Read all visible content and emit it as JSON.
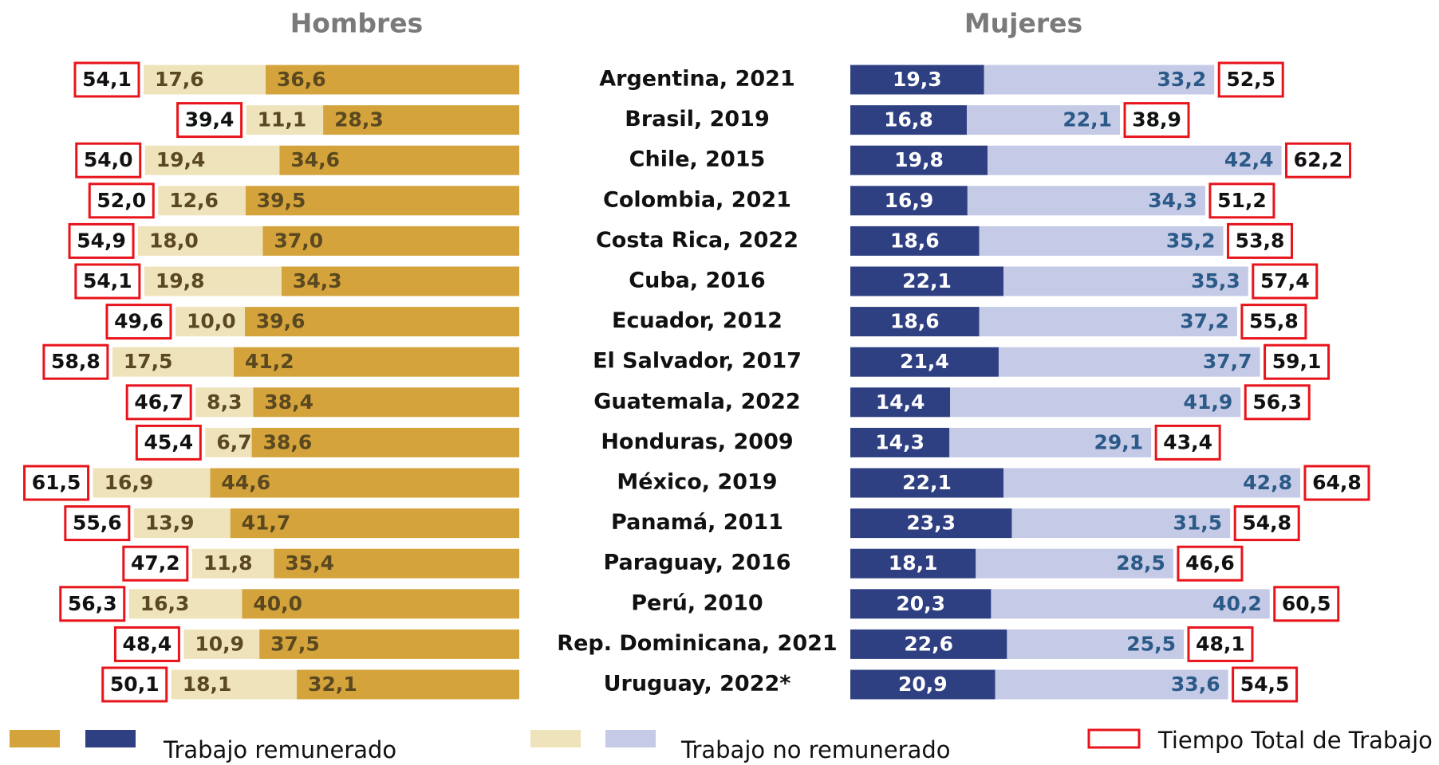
{
  "chart_data": {
    "type": "butterfly_bar",
    "categories": [
      "Argentina, 2021",
      "Brasil, 2019",
      "Chile, 2015",
      "Colombia, 2021",
      "Costa Rica, 2022",
      "Cuba, 2016",
      "Ecuador, 2012",
      "El Salvador, 2017",
      "Guatemala, 2022",
      "Honduras, 2009",
      "México, 2019",
      "Panamá, 2011",
      "Paraguay, 2016",
      "Perú, 2010",
      "Rep. Dominicana, 2021",
      "Uruguay, 2022*"
    ],
    "legend": [
      {
        "name": "Trabajo remunerado"
      },
      {
        "name": "Trabajo no remunerado"
      },
      {
        "name": "Tiempo Total de Trabajo",
        "color": "#e8141b"
      }
    ],
    "panels": [
      {
        "title": "Hombres",
        "series": [
          {
            "color": "#d4a33b",
            "text_color": "#5a4820",
            "values": [
              36.6,
              28.3,
              34.6,
              39.5,
              37.0,
              34.3,
              39.6,
              41.2,
              38.4,
              38.6,
              44.6,
              41.7,
              35.4,
              40.0,
              37.5,
              32.1
            ],
            "value_labels": [
              "36,6",
              "28,3",
              "34,6",
              "39,5",
              "37,0",
              "34,3",
              "39,6",
              "41,2",
              "38,4",
              "38,6",
              "44,6",
              "41,7",
              "35,4",
              "40,0",
              "37,5",
              "32,1"
            ]
          },
          {
            "color": "#efe3bb",
            "text_color": "#5a4820",
            "values": [
              17.6,
              11.1,
              19.4,
              12.6,
              18.0,
              19.8,
              10.0,
              17.5,
              8.3,
              6.7,
              16.9,
              13.9,
              11.8,
              16.3,
              10.9,
              18.1
            ],
            "value_labels": [
              "17,6",
              "11,1",
              "19,4",
              "12,6",
              "18,0",
              "19,8",
              "10,0",
              "17,5",
              "8,3",
              "6,7",
              "16,9",
              "13,9",
              "11,8",
              "16,3",
              "10,9",
              "18,1"
            ]
          }
        ],
        "totals": {
          "values": [
            54.1,
            39.4,
            54.0,
            52.0,
            54.9,
            54.1,
            49.6,
            58.8,
            46.7,
            45.4,
            61.5,
            55.6,
            47.2,
            56.3,
            48.4,
            50.1
          ],
          "value_labels": [
            "54,1",
            "39,4",
            "54,0",
            "52,0",
            "54,9",
            "54,1",
            "49,6",
            "58,8",
            "46,7",
            "45,4",
            "61,5",
            "55,6",
            "47,2",
            "56,3",
            "48,4",
            "50,1"
          ]
        }
      },
      {
        "title": "Mujeres",
        "series": [
          {
            "color": "#2e3f82",
            "text_color": "#ffffff",
            "values": [
              19.3,
              16.8,
              19.8,
              16.9,
              18.6,
              22.1,
              18.6,
              21.4,
              14.4,
              14.3,
              22.1,
              23.3,
              18.1,
              20.3,
              22.6,
              20.9
            ],
            "value_labels": [
              "19,3",
              "16,8",
              "19,8",
              "16,9",
              "18,6",
              "22,1",
              "18,6",
              "21,4",
              "14,4",
              "14,3",
              "22,1",
              "23,3",
              "18,1",
              "20,3",
              "22,6",
              "20,9"
            ]
          },
          {
            "color": "#c5cae6",
            "text_color": "#2b5a88",
            "values": [
              33.2,
              22.1,
              42.4,
              34.3,
              35.2,
              35.3,
              37.2,
              37.7,
              41.9,
              29.1,
              42.8,
              31.5,
              28.5,
              40.2,
              25.5,
              33.6
            ],
            "value_labels": [
              "33,2",
              "22,1",
              "42,4",
              "34,3",
              "35,2",
              "35,3",
              "37,2",
              "37,7",
              "41,9",
              "29,1",
              "42,8",
              "31,5",
              "28,5",
              "40,2",
              "25,5",
              "33,6"
            ]
          }
        ],
        "totals": {
          "values": [
            52.5,
            38.9,
            62.2,
            51.2,
            53.8,
            57.4,
            55.8,
            59.1,
            56.3,
            43.4,
            64.8,
            54.8,
            46.6,
            60.5,
            48.1,
            54.5
          ],
          "value_labels": [
            "52,5",
            "38,9",
            "62,2",
            "51,2",
            "53,8",
            "57,4",
            "55,8",
            "59,1",
            "56,3",
            "43,4",
            "64,8",
            "54,8",
            "46,6",
            "60,5",
            "48,1",
            "54,5"
          ]
        }
      }
    ]
  }
}
